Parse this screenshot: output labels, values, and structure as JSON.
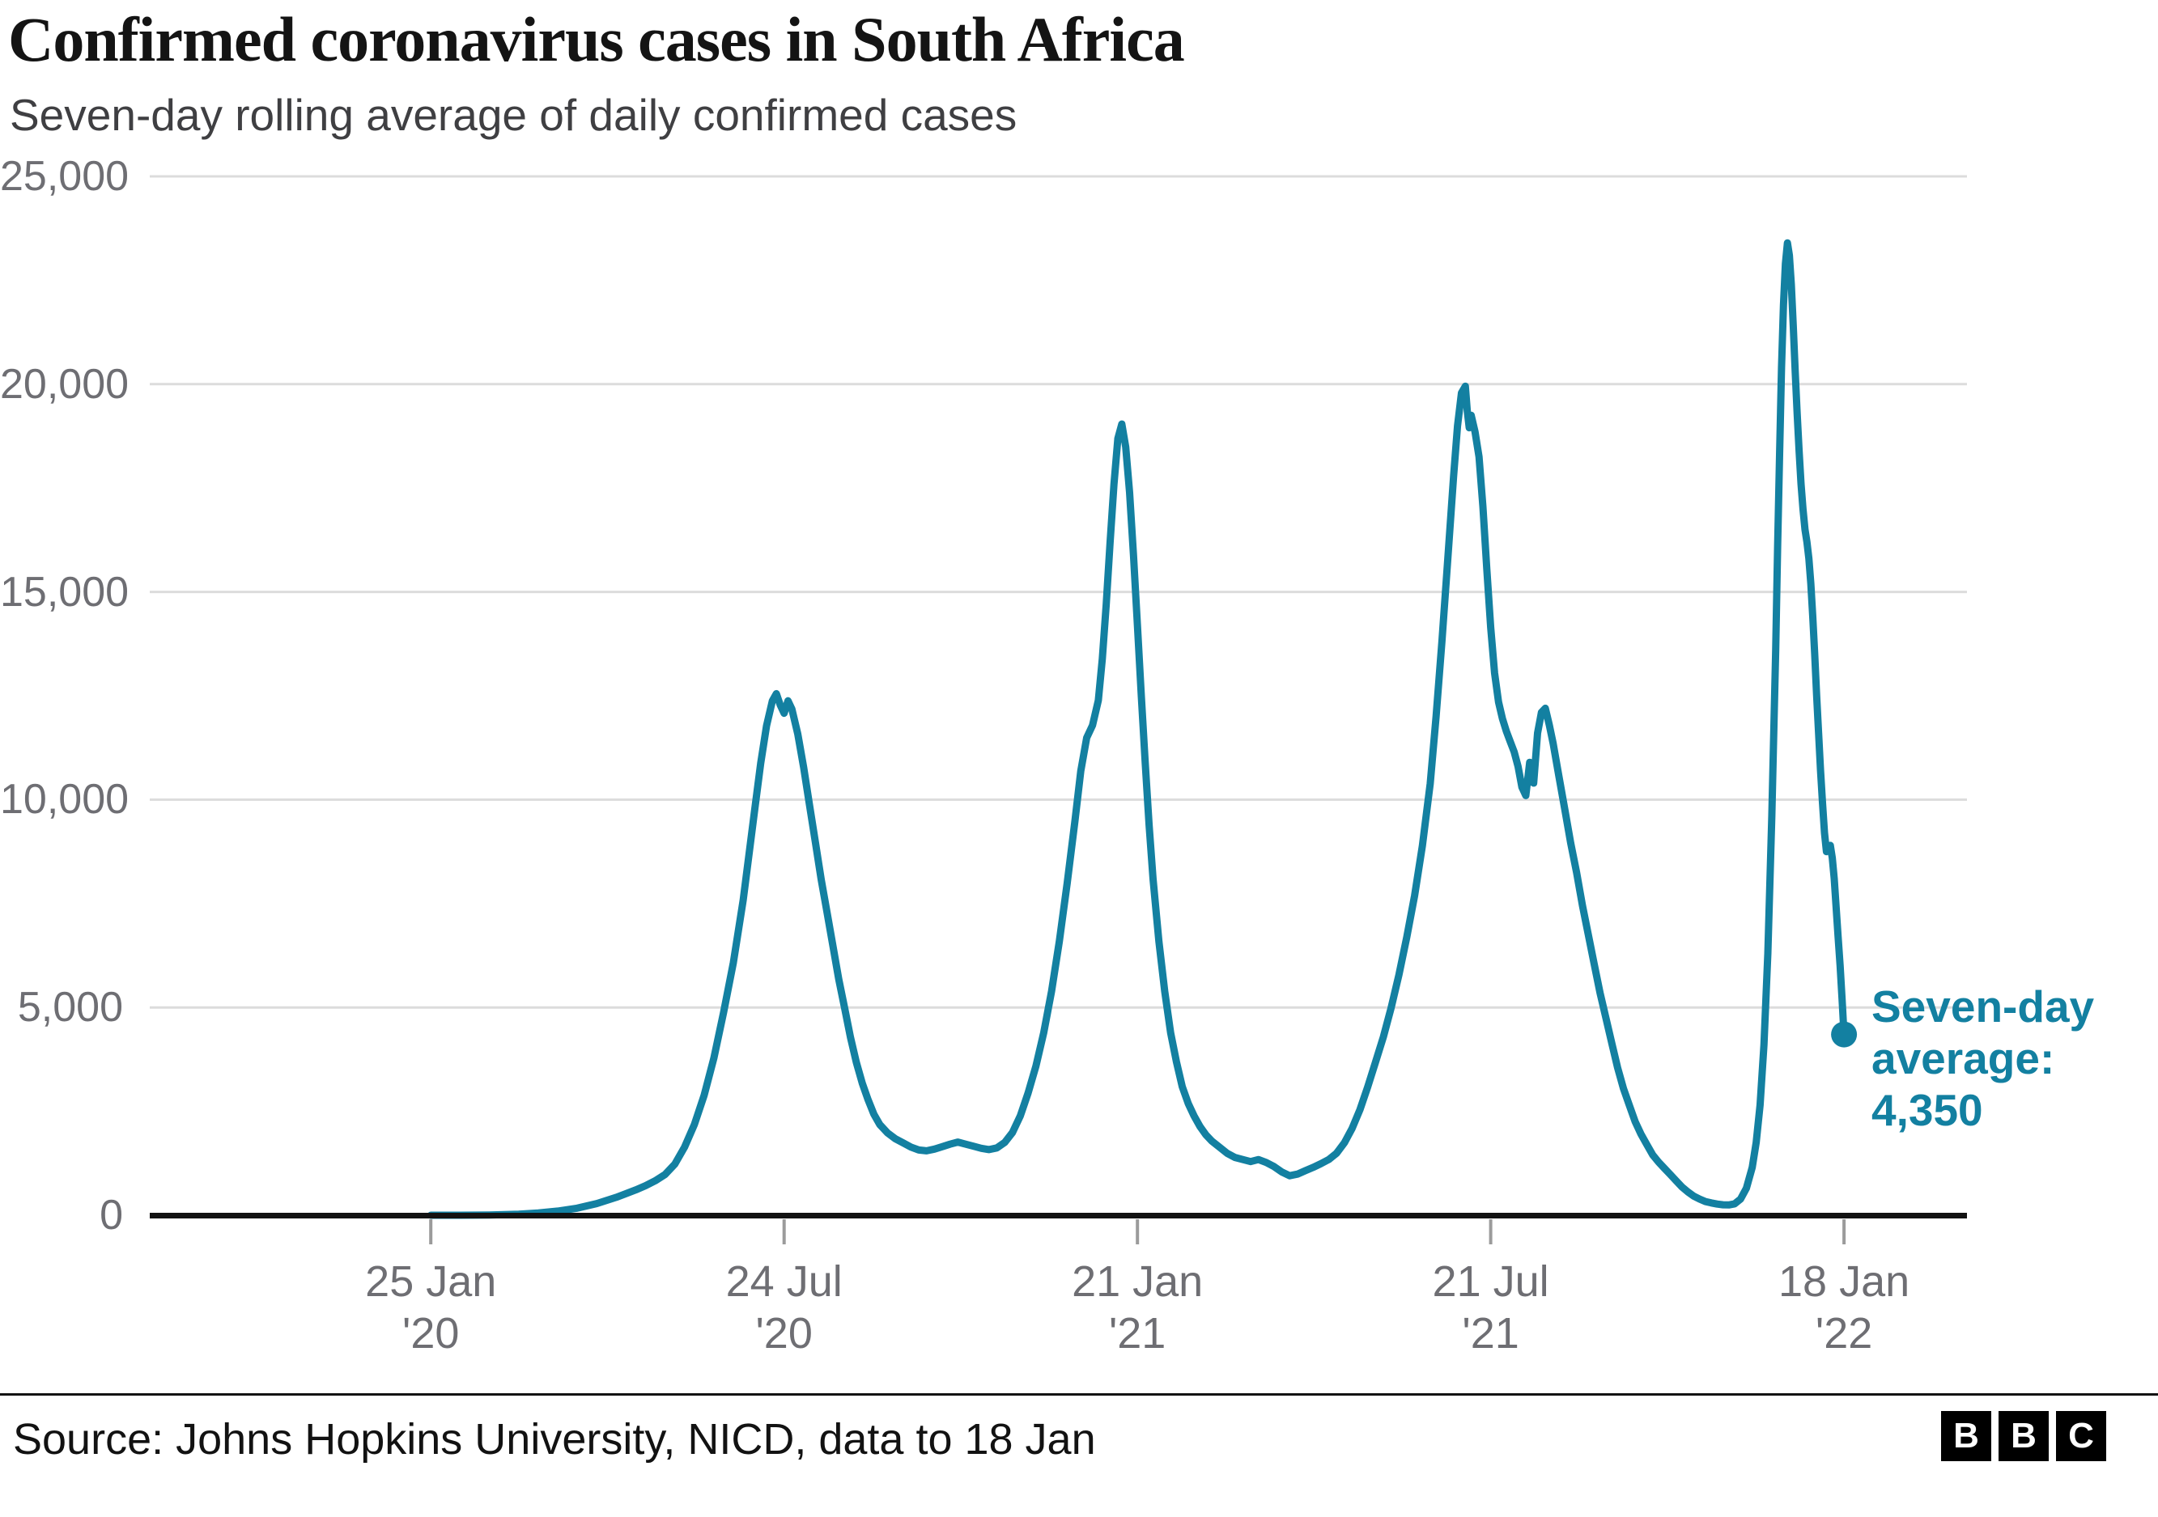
{
  "title": "Confirmed coronavirus cases in South Africa",
  "subtitle": "Seven-day rolling average of daily confirmed cases",
  "colors": {
    "line": "#1380A1",
    "annotation": "#1380A1",
    "grid": "#dcdcdc",
    "axis": "#121212",
    "tick_label": "#6e6e73"
  },
  "annotation": {
    "lines": [
      "Seven-day",
      "average:",
      "4,350"
    ]
  },
  "footer": {
    "source": "Source: Johns Hopkins University, NICD, data to 18 Jan",
    "logo_letters": [
      "B",
      "B",
      "C"
    ]
  },
  "chart_data": {
    "type": "line",
    "title": "Confirmed coronavirus cases in South Africa",
    "subtitle": "Seven-day rolling average of daily confirmed cases",
    "xlabel": "",
    "ylabel": "",
    "grid": "horizontal",
    "ylim": [
      0,
      25000
    ],
    "y_ticks": [
      0,
      5000,
      10000,
      15000,
      20000,
      25000
    ],
    "y_tick_labels": [
      "0",
      "5,000",
      "10,000",
      "15,000",
      "20,000",
      "25,000"
    ],
    "x_domain_days": [
      -144,
      787
    ],
    "x_tick_days": [
      0,
      181,
      362,
      543,
      724
    ],
    "x_tick_labels": [
      [
        "25 Jan",
        "'20"
      ],
      [
        "24 Jul",
        "'20"
      ],
      [
        "21 Jan",
        "'21"
      ],
      [
        "21 Jul",
        "'21"
      ],
      [
        "18 Jan",
        "'22"
      ]
    ],
    "end_point": {
      "day": 724,
      "value": 4350,
      "label": "Seven-day average: 4,350"
    },
    "series": [
      {
        "name": "Seven-day rolling average of daily confirmed cases",
        "points": [
          [
            0,
            0
          ],
          [
            15,
            0
          ],
          [
            30,
            5
          ],
          [
            45,
            25
          ],
          [
            55,
            55
          ],
          [
            65,
            100
          ],
          [
            75,
            170
          ],
          [
            85,
            280
          ],
          [
            95,
            430
          ],
          [
            100,
            520
          ],
          [
            105,
            610
          ],
          [
            110,
            710
          ],
          [
            115,
            830
          ],
          [
            120,
            980
          ],
          [
            125,
            1230
          ],
          [
            130,
            1640
          ],
          [
            135,
            2180
          ],
          [
            140,
            2880
          ],
          [
            145,
            3780
          ],
          [
            150,
            4880
          ],
          [
            155,
            6080
          ],
          [
            160,
            7580
          ],
          [
            163,
            8680
          ],
          [
            166,
            9780
          ],
          [
            169,
            10880
          ],
          [
            172,
            11780
          ],
          [
            175,
            12380
          ],
          [
            177,
            12550
          ],
          [
            179,
            12280
          ],
          [
            181,
            12080
          ],
          [
            183,
            12380
          ],
          [
            185,
            12180
          ],
          [
            188,
            11580
          ],
          [
            191,
            10780
          ],
          [
            194,
            9880
          ],
          [
            197,
            8980
          ],
          [
            200,
            8080
          ],
          [
            203,
            7280
          ],
          [
            206,
            6480
          ],
          [
            209,
            5680
          ],
          [
            212,
            4980
          ],
          [
            215,
            4280
          ],
          [
            218,
            3680
          ],
          [
            221,
            3180
          ],
          [
            224,
            2780
          ],
          [
            227,
            2430
          ],
          [
            230,
            2180
          ],
          [
            234,
            1980
          ],
          [
            238,
            1840
          ],
          [
            242,
            1740
          ],
          [
            246,
            1640
          ],
          [
            250,
            1570
          ],
          [
            254,
            1550
          ],
          [
            258,
            1590
          ],
          [
            262,
            1650
          ],
          [
            266,
            1710
          ],
          [
            270,
            1760
          ],
          [
            274,
            1710
          ],
          [
            278,
            1660
          ],
          [
            282,
            1610
          ],
          [
            286,
            1580
          ],
          [
            290,
            1620
          ],
          [
            294,
            1750
          ],
          [
            298,
            1990
          ],
          [
            302,
            2390
          ],
          [
            306,
            2940
          ],
          [
            310,
            3590
          ],
          [
            314,
            4390
          ],
          [
            318,
            5390
          ],
          [
            322,
            6590
          ],
          [
            326,
            7990
          ],
          [
            330,
            9490
          ],
          [
            333,
            10690
          ],
          [
            336,
            11490
          ],
          [
            339,
            11790
          ],
          [
            342,
            12390
          ],
          [
            344,
            13390
          ],
          [
            346,
            14690
          ],
          [
            348,
            16190
          ],
          [
            350,
            17590
          ],
          [
            352,
            18690
          ],
          [
            354,
            19040
          ],
          [
            356,
            18490
          ],
          [
            358,
            17390
          ],
          [
            360,
            15890
          ],
          [
            362,
            14190
          ],
          [
            364,
            12490
          ],
          [
            366,
            10890
          ],
          [
            368,
            9390
          ],
          [
            370,
            8090
          ],
          [
            373,
            6590
          ],
          [
            376,
            5390
          ],
          [
            379,
            4390
          ],
          [
            382,
            3690
          ],
          [
            385,
            3090
          ],
          [
            388,
            2690
          ],
          [
            391,
            2390
          ],
          [
            394,
            2140
          ],
          [
            397,
            1940
          ],
          [
            400,
            1790
          ],
          [
            404,
            1640
          ],
          [
            408,
            1490
          ],
          [
            412,
            1390
          ],
          [
            416,
            1340
          ],
          [
            420,
            1290
          ],
          [
            424,
            1340
          ],
          [
            428,
            1270
          ],
          [
            432,
            1170
          ],
          [
            436,
            1040
          ],
          [
            440,
            950
          ],
          [
            444,
            990
          ],
          [
            448,
            1070
          ],
          [
            452,
            1150
          ],
          [
            456,
            1240
          ],
          [
            460,
            1340
          ],
          [
            464,
            1490
          ],
          [
            468,
            1740
          ],
          [
            472,
            2090
          ],
          [
            476,
            2540
          ],
          [
            480,
            3090
          ],
          [
            484,
            3690
          ],
          [
            488,
            4290
          ],
          [
            492,
            4990
          ],
          [
            496,
            5790
          ],
          [
            500,
            6690
          ],
          [
            504,
            7690
          ],
          [
            508,
            8890
          ],
          [
            512,
            10390
          ],
          [
            515,
            11990
          ],
          [
            518,
            13790
          ],
          [
            521,
            15790
          ],
          [
            524,
            17790
          ],
          [
            526,
            18990
          ],
          [
            528,
            19790
          ],
          [
            530,
            19950
          ],
          [
            531,
            19350
          ],
          [
            532,
            18950
          ],
          [
            533,
            19250
          ],
          [
            535,
            18850
          ],
          [
            537,
            18250
          ],
          [
            539,
            17050
          ],
          [
            541,
            15550
          ],
          [
            543,
            14150
          ],
          [
            545,
            13050
          ],
          [
            547,
            12350
          ],
          [
            549,
            11950
          ],
          [
            551,
            11650
          ],
          [
            553,
            11400
          ],
          [
            555,
            11150
          ],
          [
            557,
            10800
          ],
          [
            559,
            10300
          ],
          [
            561,
            10100
          ],
          [
            563,
            10900
          ],
          [
            565,
            10400
          ],
          [
            567,
            11600
          ],
          [
            569,
            12100
          ],
          [
            571,
            12200
          ],
          [
            573,
            11800
          ],
          [
            575,
            11350
          ],
          [
            578,
            10550
          ],
          [
            581,
            9750
          ],
          [
            584,
            8950
          ],
          [
            587,
            8250
          ],
          [
            590,
            7450
          ],
          [
            593,
            6750
          ],
          [
            596,
            6050
          ],
          [
            599,
            5350
          ],
          [
            602,
            4750
          ],
          [
            605,
            4150
          ],
          [
            608,
            3550
          ],
          [
            611,
            3050
          ],
          [
            614,
            2650
          ],
          [
            617,
            2250
          ],
          [
            620,
            1950
          ],
          [
            623,
            1700
          ],
          [
            626,
            1450
          ],
          [
            629,
            1280
          ],
          [
            632,
            1130
          ],
          [
            635,
            980
          ],
          [
            638,
            830
          ],
          [
            641,
            680
          ],
          [
            644,
            560
          ],
          [
            647,
            460
          ],
          [
            650,
            390
          ],
          [
            653,
            330
          ],
          [
            656,
            295
          ],
          [
            659,
            268
          ],
          [
            662,
            252
          ],
          [
            665,
            248
          ],
          [
            668,
            275
          ],
          [
            671,
            390
          ],
          [
            674,
            650
          ],
          [
            677,
            1150
          ],
          [
            679,
            1750
          ],
          [
            681,
            2650
          ],
          [
            683,
            4100
          ],
          [
            685,
            6300
          ],
          [
            687,
            9600
          ],
          [
            689,
            13600
          ],
          [
            690,
            16100
          ],
          [
            691,
            18300
          ],
          [
            692,
            20400
          ],
          [
            693,
            21900
          ],
          [
            694,
            22900
          ],
          [
            695,
            23400
          ],
          [
            696,
            23100
          ],
          [
            697,
            22400
          ],
          [
            698,
            21400
          ],
          [
            699,
            20300
          ],
          [
            700,
            19300
          ],
          [
            701,
            18400
          ],
          [
            702,
            17600
          ],
          [
            703,
            17000
          ],
          [
            704,
            16500
          ],
          [
            705,
            16200
          ],
          [
            706,
            15800
          ],
          [
            707,
            15200
          ],
          [
            708,
            14400
          ],
          [
            709,
            13500
          ],
          [
            710,
            12500
          ],
          [
            711,
            11600
          ],
          [
            712,
            10700
          ],
          [
            713,
            9900
          ],
          [
            714,
            9200
          ],
          [
            715,
            8750
          ],
          [
            716,
            8850
          ],
          [
            717,
            8900
          ],
          [
            718,
            8600
          ],
          [
            719,
            8100
          ],
          [
            720,
            7400
          ],
          [
            721,
            6700
          ],
          [
            722,
            6000
          ],
          [
            723,
            5200
          ],
          [
            724,
            4350
          ]
        ]
      }
    ]
  }
}
